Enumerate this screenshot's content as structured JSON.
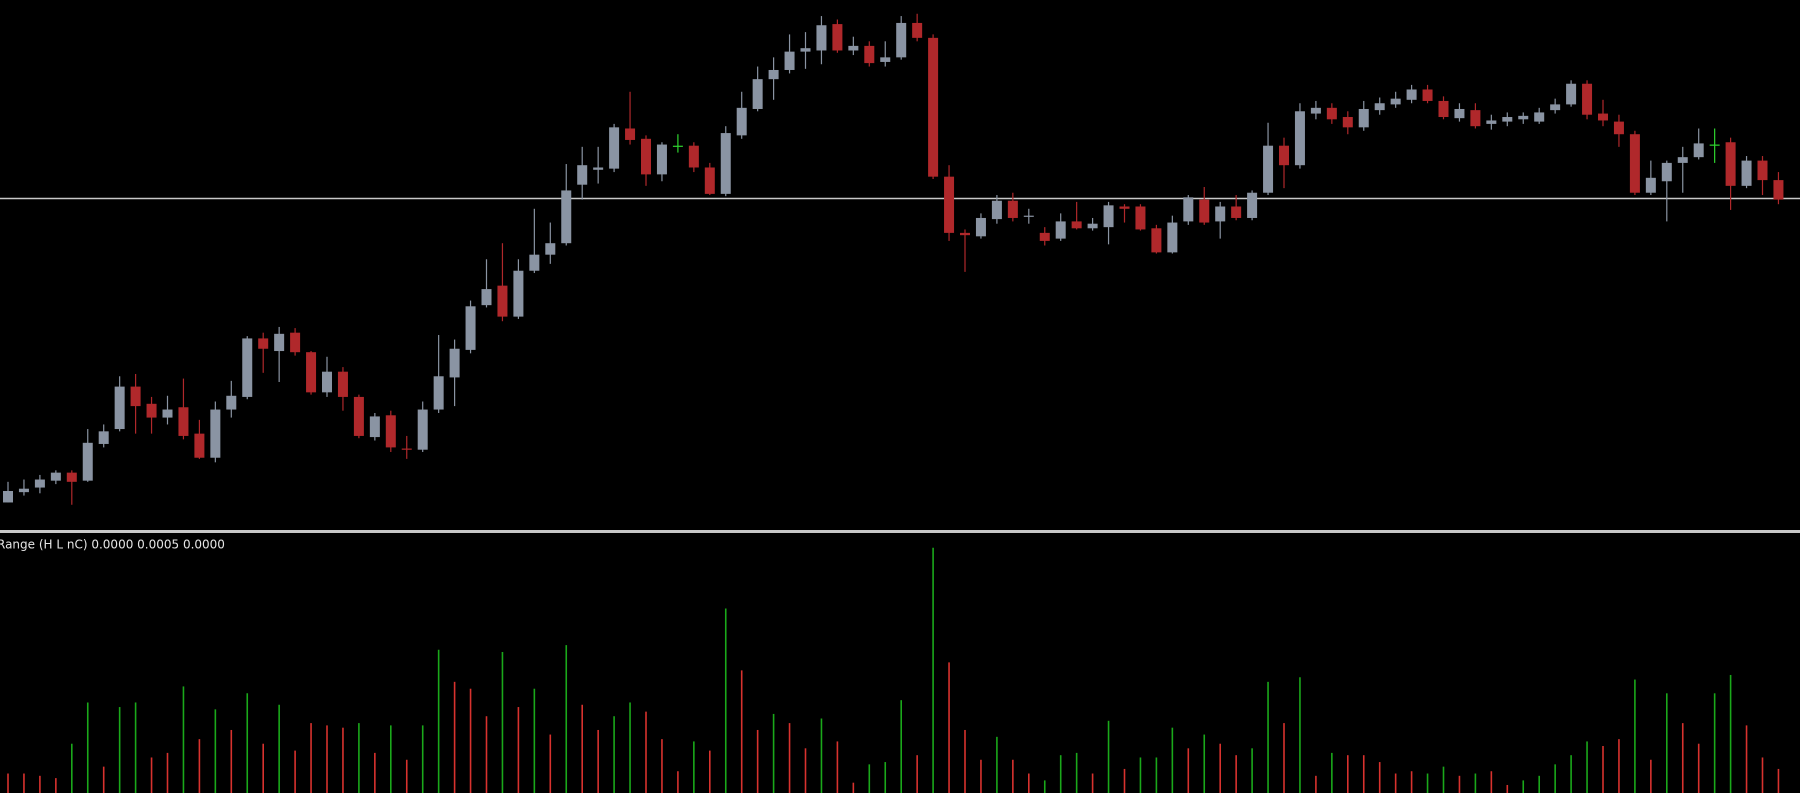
{
  "chart_data": [
    {
      "type": "candlestick",
      "ylim": [
        0,
        462
      ],
      "colors": {
        "up": "#8a94a3",
        "down": "#b0282b",
        "flat": "#2fd42f"
      },
      "hline": {
        "value": 289,
        "color": "#c8c8c8"
      },
      "ohlc": [
        [
          24,
          42,
          24,
          34
        ],
        [
          33,
          44,
          30,
          36
        ],
        [
          37,
          48,
          32,
          44
        ],
        [
          43,
          52,
          40,
          50
        ],
        [
          50,
          52,
          22,
          42
        ],
        [
          43,
          88,
          42,
          76
        ],
        [
          75,
          92,
          72,
          86
        ],
        [
          88,
          134,
          86,
          125
        ],
        [
          125,
          136,
          84,
          108
        ],
        [
          110,
          116,
          84,
          98
        ],
        [
          98,
          117,
          92,
          105
        ],
        [
          107,
          132,
          79,
          82
        ],
        [
          84,
          96,
          62,
          63
        ],
        [
          63,
          112,
          59,
          105
        ],
        [
          105,
          130,
          98,
          117
        ],
        [
          116,
          169,
          114,
          167
        ],
        [
          167,
          172,
          137,
          158
        ],
        [
          156,
          177,
          129,
          171
        ],
        [
          172,
          176,
          152,
          155
        ],
        [
          155,
          156,
          118,
          120
        ],
        [
          120,
          151,
          116,
          138
        ],
        [
          138,
          142,
          104,
          116
        ],
        [
          116,
          118,
          80,
          82
        ],
        [
          81,
          102,
          78,
          99
        ],
        [
          100,
          104,
          68,
          72
        ],
        [
          71,
          82,
          62,
          70
        ],
        [
          70,
          112,
          68,
          105
        ],
        [
          105,
          170,
          102,
          134
        ],
        [
          133,
          166,
          108,
          158
        ],
        [
          157,
          200,
          154,
          195
        ],
        [
          196,
          236,
          194,
          210
        ],
        [
          213,
          250,
          182,
          186
        ],
        [
          186,
          236,
          184,
          226
        ],
        [
          226,
          280,
          224,
          240
        ],
        [
          240,
          268,
          232,
          250
        ],
        [
          250,
          319,
          248,
          296
        ],
        [
          301,
          334,
          288,
          318
        ],
        [
          314,
          334,
          302,
          316
        ],
        [
          315,
          354,
          312,
          351
        ],
        [
          350,
          382,
          336,
          340
        ],
        [
          341,
          344,
          300,
          310
        ],
        [
          310,
          338,
          304,
          336
        ],
        [
          335,
          345,
          329,
          335
        ],
        [
          335,
          338,
          312,
          316
        ],
        [
          316,
          320,
          292,
          293
        ],
        [
          293,
          352,
          291,
          346
        ],
        [
          344,
          382,
          341,
          368
        ],
        [
          367,
          404,
          365,
          393
        ],
        [
          393,
          412,
          375,
          401
        ],
        [
          401,
          432,
          398,
          417
        ],
        [
          417,
          434,
          402,
          420
        ],
        [
          418,
          448,
          406,
          440
        ],
        [
          441,
          445,
          416,
          418
        ],
        [
          418,
          430,
          414,
          422
        ],
        [
          422,
          426,
          404,
          407
        ],
        [
          408,
          426,
          404,
          412
        ],
        [
          412,
          448,
          410,
          442
        ],
        [
          442,
          450,
          426,
          429
        ],
        [
          429,
          432,
          306,
          308
        ],
        [
          308,
          318,
          252,
          259
        ],
        [
          259,
          262,
          225,
          257
        ],
        [
          256,
          276,
          254,
          272
        ],
        [
          271,
          292,
          267,
          287
        ],
        [
          287,
          294,
          269,
          272
        ],
        [
          273,
          280,
          267,
          274
        ],
        [
          259,
          264,
          248,
          252
        ],
        [
          254,
          276,
          252,
          269
        ],
        [
          269,
          286,
          262,
          263
        ],
        [
          263,
          272,
          261,
          267
        ],
        [
          264,
          286,
          249,
          283
        ],
        [
          282,
          284,
          268,
          280
        ],
        [
          282,
          284,
          261,
          262
        ],
        [
          263,
          266,
          241,
          242
        ],
        [
          242,
          274,
          241,
          268
        ],
        [
          269,
          292,
          266,
          290
        ],
        [
          288,
          299,
          266,
          268
        ],
        [
          269,
          286,
          254,
          282
        ],
        [
          282,
          292,
          270,
          272
        ],
        [
          272,
          296,
          270,
          294
        ],
        [
          294,
          355,
          292,
          335
        ],
        [
          335,
          342,
          298,
          318
        ],
        [
          318,
          372,
          315,
          365
        ],
        [
          363,
          374,
          358,
          368
        ],
        [
          368,
          372,
          354,
          358
        ],
        [
          360,
          365,
          345,
          351
        ],
        [
          351,
          374,
          348,
          367
        ],
        [
          366,
          377,
          362,
          372
        ],
        [
          371,
          382,
          368,
          376
        ],
        [
          375,
          388,
          372,
          384
        ],
        [
          384,
          388,
          372,
          374
        ],
        [
          374,
          378,
          358,
          360
        ],
        [
          359,
          372,
          356,
          367
        ],
        [
          366,
          372,
          350,
          352
        ],
        [
          354,
          362,
          349,
          357
        ],
        [
          356,
          364,
          352,
          360
        ],
        [
          358,
          364,
          354,
          361
        ],
        [
          356,
          368,
          354,
          364
        ],
        [
          366,
          376,
          363,
          371
        ],
        [
          371,
          392,
          369,
          389
        ],
        [
          389,
          392,
          358,
          362
        ],
        [
          363,
          375,
          352,
          357
        ],
        [
          356,
          362,
          334,
          345
        ],
        [
          345,
          348,
          292,
          294
        ],
        [
          294,
          322,
          292,
          307
        ],
        [
          304,
          322,
          269,
          320
        ],
        [
          320,
          334,
          294,
          325
        ],
        [
          325,
          350,
          323,
          337
        ],
        [
          336,
          350,
          320,
          336
        ],
        [
          338,
          342,
          279,
          300
        ],
        [
          300,
          326,
          298,
          322
        ],
        [
          322,
          326,
          292,
          305
        ],
        [
          305,
          312,
          284,
          288
        ]
      ]
    },
    {
      "type": "histogram",
      "title": "Range (H L nC) 0.0000 0.0005 0.0000",
      "ylim": [
        0,
        226
      ],
      "colors": {
        "up": "#1aa81a",
        "down": "#d8322e"
      },
      "values": [
        17,
        17,
        15,
        13,
        43,
        79,
        23,
        75,
        79,
        31,
        35,
        93,
        47,
        73,
        55,
        87,
        43,
        77,
        37,
        61,
        59,
        57,
        61,
        35,
        59,
        29,
        59,
        125,
        97,
        91,
        67,
        123,
        75,
        91,
        51,
        129,
        77,
        55,
        67,
        79,
        71,
        47,
        19,
        45,
        37,
        161,
        107,
        55,
        69,
        61,
        39,
        65,
        45,
        9,
        25,
        27,
        81,
        33,
        214,
        114,
        55,
        29,
        49,
        29,
        17,
        11,
        33,
        35,
        17,
        63,
        21,
        31,
        31,
        57,
        39,
        51,
        43,
        33,
        39,
        97,
        61,
        101,
        15,
        35,
        33,
        33,
        27,
        17,
        19,
        17,
        23,
        15,
        17,
        19,
        7,
        11,
        15,
        25,
        33,
        45,
        41,
        47,
        99,
        29,
        87,
        61,
        43,
        87,
        103,
        59,
        31,
        21
      ],
      "directions": [
        "down",
        "down",
        "down",
        "down",
        "up",
        "up",
        "down",
        "up",
        "up",
        "down",
        "down",
        "up",
        "down",
        "up",
        "down",
        "up",
        "down",
        "up",
        "down",
        "down",
        "down",
        "down",
        "up",
        "down",
        "up",
        "down",
        "up",
        "up",
        "down",
        "down",
        "down",
        "up",
        "down",
        "up",
        "down",
        "up",
        "down",
        "down",
        "up",
        "up",
        "down",
        "down",
        "down",
        "up",
        "down",
        "up",
        "down",
        "down",
        "up",
        "down",
        "down",
        "up",
        "down",
        "down",
        "up",
        "up",
        "up",
        "down",
        "up",
        "down",
        "down",
        "down",
        "up",
        "down",
        "down",
        "up",
        "up",
        "up",
        "down",
        "up",
        "down",
        "up",
        "up",
        "up",
        "down",
        "up",
        "down",
        "down",
        "up",
        "up",
        "down",
        "up",
        "down",
        "up",
        "down",
        "down",
        "down",
        "down",
        "down",
        "up",
        "up",
        "down",
        "up",
        "down",
        "down",
        "up",
        "up",
        "up",
        "up",
        "up",
        "down",
        "down",
        "up",
        "down",
        "up",
        "down",
        "down",
        "up",
        "up",
        "down",
        "down",
        "down"
      ]
    }
  ]
}
